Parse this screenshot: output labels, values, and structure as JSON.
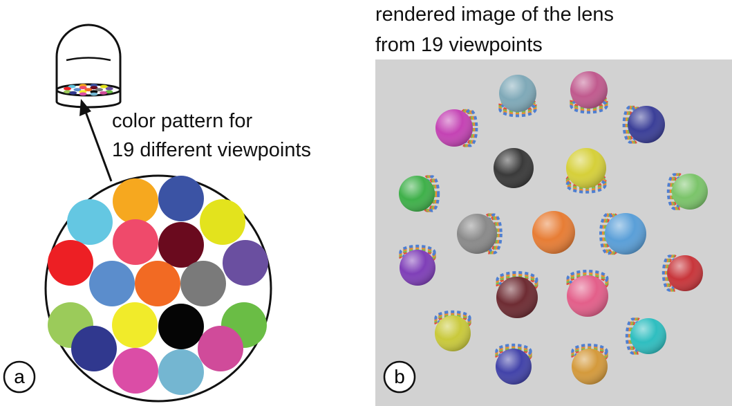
{
  "panel_a": {
    "label": "a",
    "caption_lines": [
      "color pattern for",
      "19 different viewpoints"
    ],
    "pattern_colors": [
      "#f6a81f",
      "#3b53a4",
      "#64c7e2",
      "#ef4a6b",
      "#6a0a1e",
      "#e3e31d",
      "#ed1f24",
      "#5b8dcc",
      "#f26a23",
      "#7a7a7a",
      "#6a4fa0",
      "#9bcb5a",
      "#f1eb2a",
      "#050505",
      "#6abd45",
      "#30388e",
      "#d04b9a",
      "#db4da6",
      "#74b6d1"
    ]
  },
  "panel_b": {
    "label": "b",
    "title_lines": [
      "rendered image of the lens",
      "from 19 viewpoints"
    ],
    "background": "#d2d2d2"
  }
}
